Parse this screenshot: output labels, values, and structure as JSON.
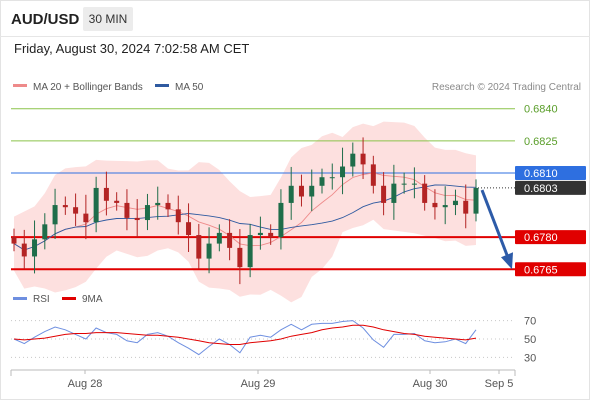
{
  "header": {
    "symbol": "AUD/USD",
    "timeframe": "30 MIN"
  },
  "timestamp": "Friday, August 30, 2024 7:02:58 AM CET",
  "legend": {
    "bb": "MA 20 + Bollinger Bands",
    "ma50": "MA 50",
    "credit": "Research © 2024 Trading Central"
  },
  "rsi_legend": {
    "rsi": "RSI",
    "ma9": "9MA"
  },
  "colors": {
    "candle_up": "#1f6d4a",
    "candle_down": "#b32424",
    "ma20": "#ee8a8a",
    "ma50": "#2f5aa0",
    "bb_fill": "#fde0df",
    "support": "#e00000",
    "resistance": "#8bc34a",
    "pivot": "#2e6fe0",
    "current": "#333333",
    "arrow": "#2d5ba8",
    "rsi": "#6e8fe0",
    "rsi_ma": "#e00000"
  },
  "chart_data": [
    {
      "type": "candlestick",
      "title": "AUD/USD 30 MIN",
      "ylim": [
        0.676,
        0.6845
      ],
      "x_ticks": [
        "Aug 28",
        "Aug 29",
        "Aug 30",
        "Sep 5"
      ],
      "levels": [
        {
          "value": 0.684,
          "label": "0.6840",
          "kind": "resistance"
        },
        {
          "value": 0.6825,
          "label": "0.6825",
          "kind": "resistance"
        },
        {
          "value": 0.681,
          "label": "0.6810",
          "kind": "pivot"
        },
        {
          "value": 0.6803,
          "label": "0.6803",
          "kind": "current"
        },
        {
          "value": 0.678,
          "label": "0.6780",
          "kind": "support"
        },
        {
          "value": 0.6765,
          "label": "0.6765",
          "kind": "support"
        }
      ],
      "series": [
        {
          "name": "MA 20 + Bollinger Bands"
        },
        {
          "name": "MA 50"
        }
      ],
      "close_path": [
        0.6777,
        0.6771,
        0.6779,
        0.6786,
        0.6795,
        0.6794,
        0.6791,
        0.6787,
        0.6803,
        0.6797,
        0.6796,
        0.6789,
        0.6788,
        0.6795,
        0.6796,
        0.6793,
        0.6787,
        0.6781,
        0.677,
        0.6777,
        0.6782,
        0.6775,
        0.6766,
        0.6781,
        0.6782,
        0.678,
        0.6796,
        0.6804,
        0.6799,
        0.6804,
        0.6808,
        0.6808,
        0.6813,
        0.6819,
        0.6814,
        0.6804,
        0.6796,
        0.6805,
        0.6805,
        0.6805,
        0.6796,
        0.6794,
        0.6795,
        0.6797,
        0.6791,
        0.6803
      ],
      "projection": {
        "from": 0.6802,
        "to": 0.6765
      }
    },
    {
      "type": "line",
      "title": "RSI",
      "ylim": [
        25,
        75
      ],
      "y_ticks": [
        30,
        50,
        70
      ],
      "series": [
        {
          "name": "RSI",
          "values": [
            50,
            45,
            52,
            58,
            63,
            60,
            55,
            50,
            62,
            57,
            55,
            48,
            46,
            55,
            57,
            53,
            46,
            40,
            33,
            42,
            50,
            44,
            35,
            52,
            54,
            52,
            60,
            66,
            60,
            66,
            67,
            67,
            69,
            70,
            62,
            49,
            41,
            55,
            55,
            56,
            48,
            46,
            47,
            50,
            45,
            60
          ]
        },
        {
          "name": "9MA",
          "values": [
            50,
            49,
            50,
            51,
            53,
            55,
            56,
            56,
            57,
            57,
            57,
            56,
            55,
            54,
            54,
            53,
            52,
            50,
            48,
            46,
            45,
            44,
            44,
            46,
            47,
            48,
            50,
            53,
            55,
            57,
            60,
            62,
            63,
            65,
            65,
            63,
            60,
            58,
            56,
            55,
            53,
            52,
            51,
            50,
            49,
            51
          ]
        }
      ]
    }
  ]
}
